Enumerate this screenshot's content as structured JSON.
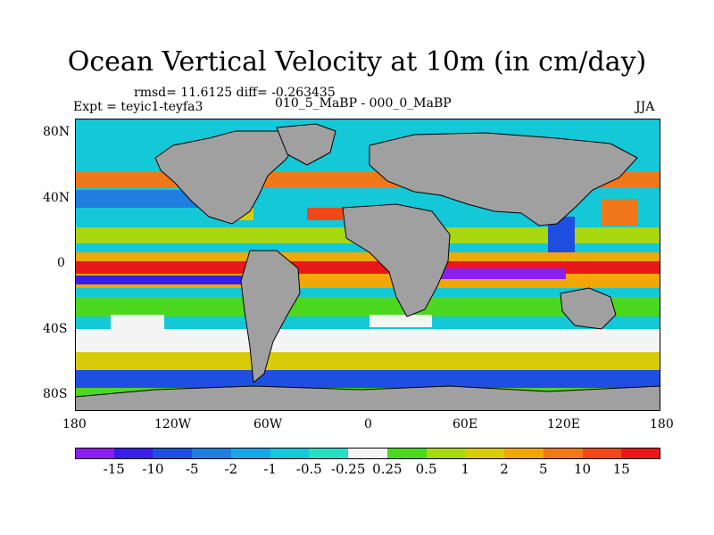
{
  "title": "Ocean Vertical Velocity at 10m (in cm/day)",
  "stats": "rmsd= 11.6125 diff= -0.263435",
  "expt": "Expt = teyic1-teyfa3",
  "comparison": "010_5_MaBP - 000_0_MaBP",
  "season": "JJA",
  "lat_ticks": [
    "80N",
    "40N",
    "0",
    "40S",
    "80S"
  ],
  "lon_ticks": [
    "180",
    "120W",
    "60W",
    "0",
    "60E",
    "120E",
    "180"
  ],
  "colorbar": {
    "labels": [
      "-15",
      "-10",
      "-5",
      "-2",
      "-1",
      "-0.5",
      "-0.25",
      "0.25",
      "0.5",
      "1",
      "2",
      "5",
      "10",
      "15"
    ],
    "colors": [
      "#8a1ff0",
      "#3a1ee8",
      "#1f4fe0",
      "#1e7fe0",
      "#18a7e8",
      "#14c8d8",
      "#28e0c0",
      "#f4f4f4",
      "#4cd81e",
      "#a8d810",
      "#d8cc08",
      "#f0a808",
      "#f07818",
      "#f04818",
      "#e81818"
    ]
  },
  "land_color": "#a0a0a0"
}
